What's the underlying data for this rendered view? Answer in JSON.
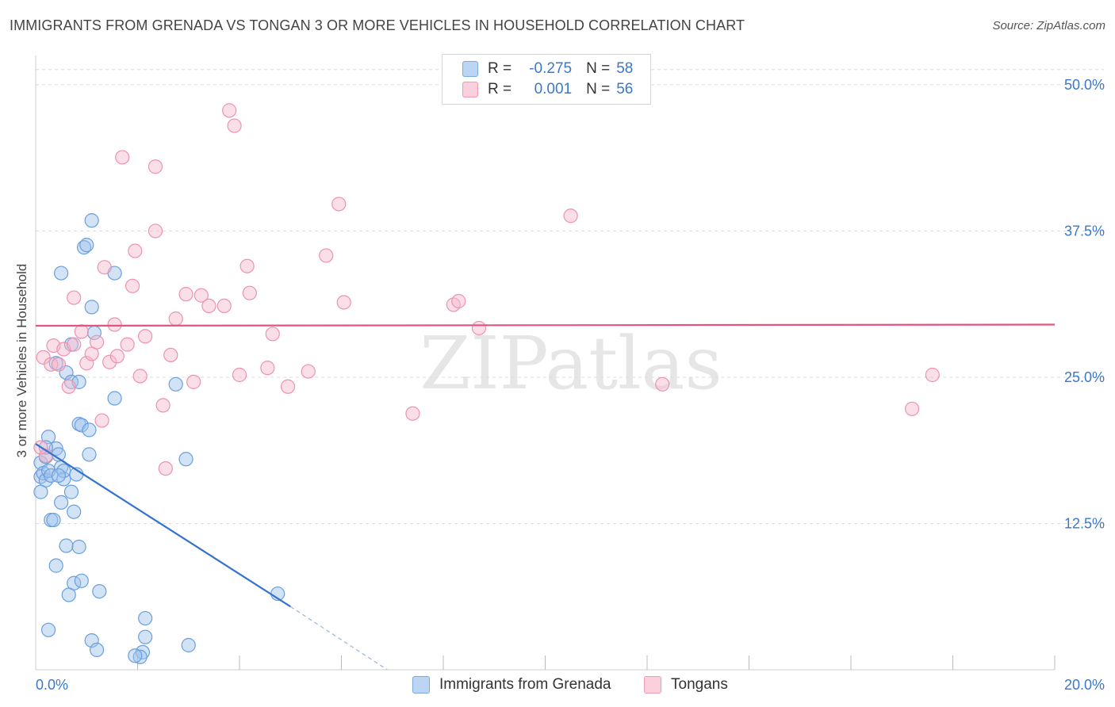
{
  "chart_data": {
    "type": "scatter",
    "title": "IMMIGRANTS FROM GRENADA VS TONGAN 3 OR MORE VEHICLES IN HOUSEHOLD CORRELATION CHART",
    "source": "Source: ZipAtlas.com",
    "xlabel": "",
    "ylabel": "3 or more Vehicles in Household",
    "xlim": [
      0,
      20
    ],
    "ylim": [
      0,
      52.5
    ],
    "x_tick_labels": [
      "0.0%",
      "20.0%"
    ],
    "y_ticks": [
      12.5,
      25.0,
      37.5,
      50.0
    ],
    "y_tick_labels": [
      "12.5%",
      "25.0%",
      "37.5%",
      "50.0%"
    ],
    "watermark": "ZIPatlas",
    "legend": {
      "rows": [
        {
          "r_label": "R =",
          "r_value": "-0.275",
          "n_label": "N =",
          "n_value": "58"
        },
        {
          "r_label": "R =",
          "r_value": "0.001",
          "n_label": "N =",
          "n_value": "56"
        }
      ]
    },
    "series": [
      {
        "name": "Immigrants from Grenada",
        "color": "#9ec1ec",
        "stroke": "#6a9fdc",
        "line_color": "#3373d0",
        "trend": {
          "x": [
            0.0,
            5.0
          ],
          "y": [
            19.3,
            5.4
          ],
          "dashed_extension_to": [
            6.9,
            0
          ]
        },
        "points": [
          [
            0.1,
            17.7
          ],
          [
            0.1,
            16.5
          ],
          [
            0.1,
            15.2
          ],
          [
            0.15,
            16.8
          ],
          [
            0.2,
            16.2
          ],
          [
            0.25,
            17.0
          ],
          [
            0.3,
            16.6
          ],
          [
            0.2,
            18.2
          ],
          [
            0.25,
            19.9
          ],
          [
            0.4,
            18.9
          ],
          [
            0.45,
            18.4
          ],
          [
            0.5,
            17.3
          ],
          [
            0.55,
            16.3
          ],
          [
            0.5,
            14.3
          ],
          [
            0.55,
            17.0
          ],
          [
            0.7,
            15.2
          ],
          [
            0.75,
            13.5
          ],
          [
            0.8,
            16.7
          ],
          [
            0.85,
            21.0
          ],
          [
            0.9,
            20.9
          ],
          [
            1.05,
            18.4
          ],
          [
            0.3,
            12.8
          ],
          [
            0.35,
            12.8
          ],
          [
            0.6,
            10.6
          ],
          [
            0.85,
            10.5
          ],
          [
            0.4,
            8.9
          ],
          [
            0.75,
            7.4
          ],
          [
            0.9,
            7.6
          ],
          [
            1.25,
            6.7
          ],
          [
            0.65,
            6.4
          ],
          [
            0.25,
            3.4
          ],
          [
            1.1,
            2.5
          ],
          [
            1.2,
            1.7
          ],
          [
            2.15,
            4.4
          ],
          [
            2.15,
            2.8
          ],
          [
            2.1,
            1.5
          ],
          [
            2.05,
            1.1
          ],
          [
            1.95,
            1.2
          ],
          [
            3.0,
            2.1
          ],
          [
            4.75,
            6.5
          ],
          [
            0.4,
            26.2
          ],
          [
            0.6,
            25.4
          ],
          [
            0.7,
            24.6
          ],
          [
            0.85,
            24.6
          ],
          [
            0.7,
            27.8
          ],
          [
            1.15,
            28.8
          ],
          [
            1.55,
            23.2
          ],
          [
            1.1,
            31.0
          ],
          [
            0.5,
            33.9
          ],
          [
            1.55,
            33.9
          ],
          [
            0.95,
            36.1
          ],
          [
            1.0,
            36.3
          ],
          [
            1.1,
            38.4
          ],
          [
            2.75,
            24.4
          ],
          [
            2.95,
            18.0
          ],
          [
            0.2,
            19.0
          ],
          [
            1.05,
            20.5
          ],
          [
            0.45,
            16.6
          ]
        ]
      },
      {
        "name": "Tongans",
        "color": "#f7b8cc",
        "stroke": "#ec93ae",
        "line_color": "#e2557f",
        "trend": {
          "x": [
            0.0,
            20.0
          ],
          "y": [
            29.4,
            29.5
          ]
        },
        "points": [
          [
            0.15,
            26.7
          ],
          [
            0.3,
            26.1
          ],
          [
            0.35,
            27.7
          ],
          [
            0.55,
            27.4
          ],
          [
            0.75,
            27.8
          ],
          [
            0.45,
            26.1
          ],
          [
            0.65,
            24.2
          ],
          [
            0.75,
            31.8
          ],
          [
            0.9,
            28.9
          ],
          [
            1.0,
            26.2
          ],
          [
            1.1,
            27.0
          ],
          [
            1.2,
            28.0
          ],
          [
            1.3,
            21.3
          ],
          [
            1.35,
            34.4
          ],
          [
            1.45,
            26.3
          ],
          [
            1.55,
            29.5
          ],
          [
            1.6,
            26.8
          ],
          [
            1.7,
            43.8
          ],
          [
            1.8,
            27.8
          ],
          [
            1.9,
            32.8
          ],
          [
            1.95,
            35.8
          ],
          [
            2.05,
            25.1
          ],
          [
            2.15,
            28.5
          ],
          [
            2.35,
            43.0
          ],
          [
            2.35,
            37.5
          ],
          [
            2.5,
            22.6
          ],
          [
            2.55,
            17.2
          ],
          [
            2.65,
            26.9
          ],
          [
            2.75,
            30.0
          ],
          [
            2.95,
            32.1
          ],
          [
            3.1,
            24.6
          ],
          [
            3.25,
            32.0
          ],
          [
            3.4,
            31.1
          ],
          [
            3.7,
            31.1
          ],
          [
            3.8,
            47.8
          ],
          [
            3.9,
            46.5
          ],
          [
            4.0,
            25.2
          ],
          [
            4.15,
            34.5
          ],
          [
            4.2,
            32.2
          ],
          [
            4.55,
            25.8
          ],
          [
            4.65,
            28.7
          ],
          [
            4.95,
            24.2
          ],
          [
            5.35,
            25.5
          ],
          [
            5.7,
            35.4
          ],
          [
            5.95,
            39.8
          ],
          [
            6.05,
            31.4
          ],
          [
            7.4,
            21.9
          ],
          [
            8.2,
            31.2
          ],
          [
            8.3,
            31.5
          ],
          [
            8.7,
            29.2
          ],
          [
            10.5,
            38.8
          ],
          [
            12.3,
            24.4
          ],
          [
            17.2,
            22.3
          ],
          [
            17.6,
            25.2
          ],
          [
            0.2,
            18.3
          ],
          [
            0.1,
            19.0
          ]
        ]
      }
    ]
  }
}
